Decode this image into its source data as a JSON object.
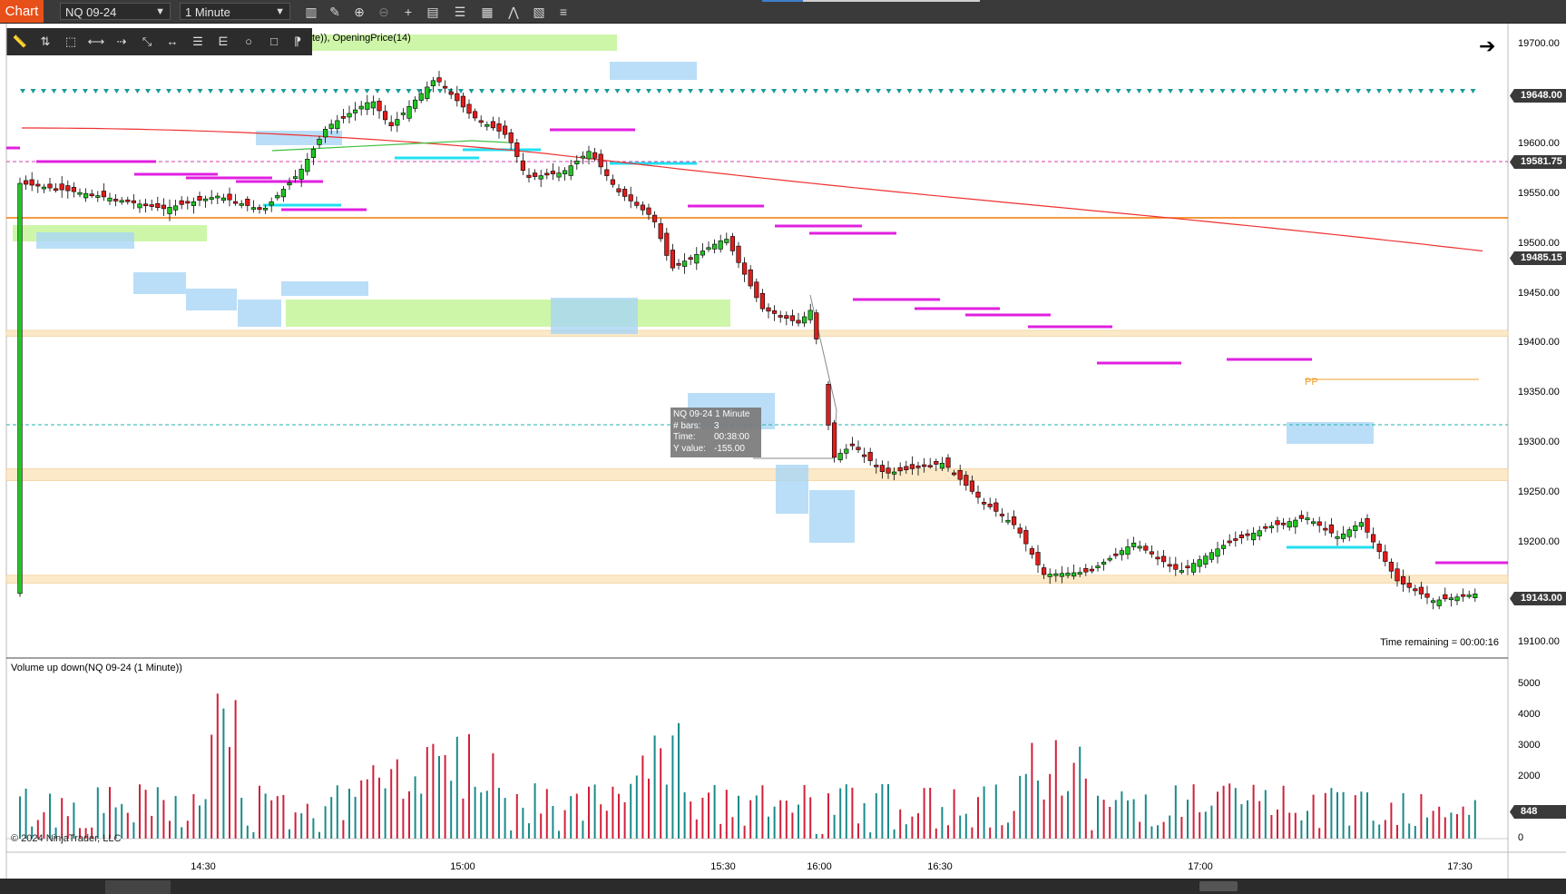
{
  "toolbar": {
    "tab_label": "Chart",
    "instrument": "NQ 09-24",
    "interval": "1 Minute",
    "icons": [
      "bar-type-icon",
      "pencil-icon",
      "zoom-in-icon",
      "zoom-out-icon",
      "crosshair-icon",
      "data-box-icon",
      "properties-icon",
      "templates-icon",
      "strategies-icon",
      "indicators-icon",
      "list-icon"
    ]
  },
  "drawing_tools": [
    "ruler-icon",
    "risk-reward-icon",
    "region-icon",
    "line-icon",
    "ray-icon",
    "extended-line-icon",
    "horizontal-line-icon",
    "fibonacci-icon",
    "gann-icon",
    "ellipse-icon",
    "rectangle-icon",
    "text-icon"
  ],
  "chart": {
    "indicator_label": "te)), OpeningPrice(14)",
    "time_remaining": "Time remaining = 00:00:16",
    "pp_label": "PP",
    "y_ticks": [
      "19700.00",
      "19600.00",
      "19550.00",
      "19500.00",
      "19450.00",
      "19400.00",
      "19350.00",
      "19300.00",
      "19250.00",
      "19200.00",
      "19100.00"
    ],
    "price_labels": {
      "top_line": "19648.00",
      "dashed_line": "19581.75",
      "ema": "19485.15",
      "last": "19143.00"
    },
    "tooltip": {
      "title": "NQ 09-24 1 Minute",
      "bars_key": "# bars:",
      "bars_val": "3",
      "time_key": "Time:",
      "time_val": "00:38:00",
      "yval_key": "Y value:",
      "yval_val": "-155.00"
    }
  },
  "volume": {
    "label": "Volume up down(NQ 09-24 (1 Minute))",
    "y_ticks": [
      "5000",
      "4000",
      "3000",
      "2000",
      "0"
    ],
    "last_label": "848"
  },
  "x_ticks": [
    "14:30",
    "15:00",
    "15:30",
    "16:00",
    "16:30",
    "17:00",
    "17:30"
  ],
  "copyright": "© 2024 NinjaTrader, LLC",
  "colors": {
    "up": "#22c422",
    "down": "#e01c1c",
    "vol_up": "#1a8a8a",
    "vol_down": "#d0203a",
    "accent": "#e8501a"
  }
}
